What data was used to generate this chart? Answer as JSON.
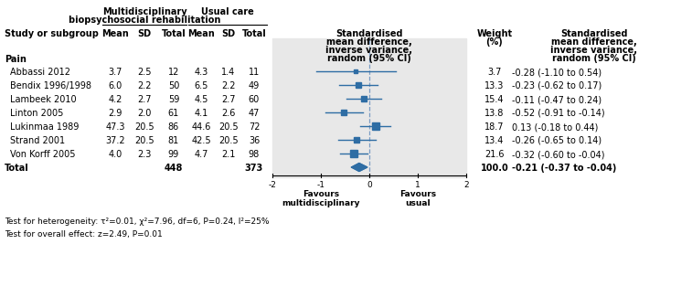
{
  "studies": [
    {
      "name": "Abbassi 2012",
      "m1": "3.7",
      "sd1": "2.5",
      "n1": "12",
      "m2": "4.3",
      "sd2": "1.4",
      "n2": "11",
      "smd": -0.28,
      "ci_lo": -1.1,
      "ci_hi": 0.54,
      "weight": 3.7,
      "label": "-0.28 (-1.10 to 0.54)"
    },
    {
      "name": "Bendix 1996/1998",
      "m1": "6.0",
      "sd1": "2.2",
      "n1": "50",
      "m2": "6.5",
      "sd2": "2.2",
      "n2": "49",
      "smd": -0.23,
      "ci_lo": -0.62,
      "ci_hi": 0.17,
      "weight": 13.3,
      "label": "-0.23 (-0.62 to 0.17)"
    },
    {
      "name": "Lambeek 2010",
      "m1": "4.2",
      "sd1": "2.7",
      "n1": "59",
      "m2": "4.5",
      "sd2": "2.7",
      "n2": "60",
      "smd": -0.11,
      "ci_lo": -0.47,
      "ci_hi": 0.24,
      "weight": 15.4,
      "label": "-0.11 (-0.47 to 0.24)"
    },
    {
      "name": "Linton 2005",
      "m1": "2.9",
      "sd1": "2.0",
      "n1": "61",
      "m2": "4.1",
      "sd2": "2.6",
      "n2": "47",
      "smd": -0.52,
      "ci_lo": -0.91,
      "ci_hi": -0.14,
      "weight": 13.8,
      "label": "-0.52 (-0.91 to -0.14)"
    },
    {
      "name": "Lukinmaa 1989",
      "m1": "47.3",
      "sd1": "20.5",
      "n1": "86",
      "m2": "44.6",
      "sd2": "20.5",
      "n2": "72",
      "smd": 0.13,
      "ci_lo": -0.18,
      "ci_hi": 0.44,
      "weight": 18.7,
      "label": "0.13 (-0.18 to 0.44)"
    },
    {
      "name": "Strand 2001",
      "m1": "37.2",
      "sd1": "20.5",
      "n1": "81",
      "m2": "42.5",
      "sd2": "20.5",
      "n2": "36",
      "smd": -0.26,
      "ci_lo": -0.65,
      "ci_hi": 0.14,
      "weight": 13.4,
      "label": "-0.26 (-0.65 to 0.14)"
    },
    {
      "name": "Von Korff 2005",
      "m1": "4.0",
      "sd1": "2.3",
      "n1": "99",
      "m2": "4.7",
      "sd2": "2.1",
      "n2": "98",
      "smd": -0.32,
      "ci_lo": -0.6,
      "ci_hi": -0.04,
      "weight": 21.6,
      "label": "-0.32 (-0.60 to -0.04)"
    }
  ],
  "total": {
    "n1": "448",
    "n2": "373",
    "smd": -0.21,
    "ci_lo": -0.37,
    "ci_hi": -0.04,
    "weight": "100.0",
    "label": "-0.21 (-0.37 to -0.04)"
  },
  "heterogeneity": "Test for heterogeneity: τ²=0.01, χ²=7.96, df=6, P=0.24, I²=25%",
  "overall_effect": "Test for overall effect: z=2.49, P=0.01",
  "x_min": -2,
  "x_max": 2,
  "x_ticks": [
    -2,
    -1,
    0,
    1,
    2
  ],
  "bg_color": "#e8e8e8",
  "plot_color": "#2e6da4",
  "favours_left": "Favours\nmultidisciplinary",
  "favours_right": "Favours\nusual",
  "subgroup": "Pain"
}
